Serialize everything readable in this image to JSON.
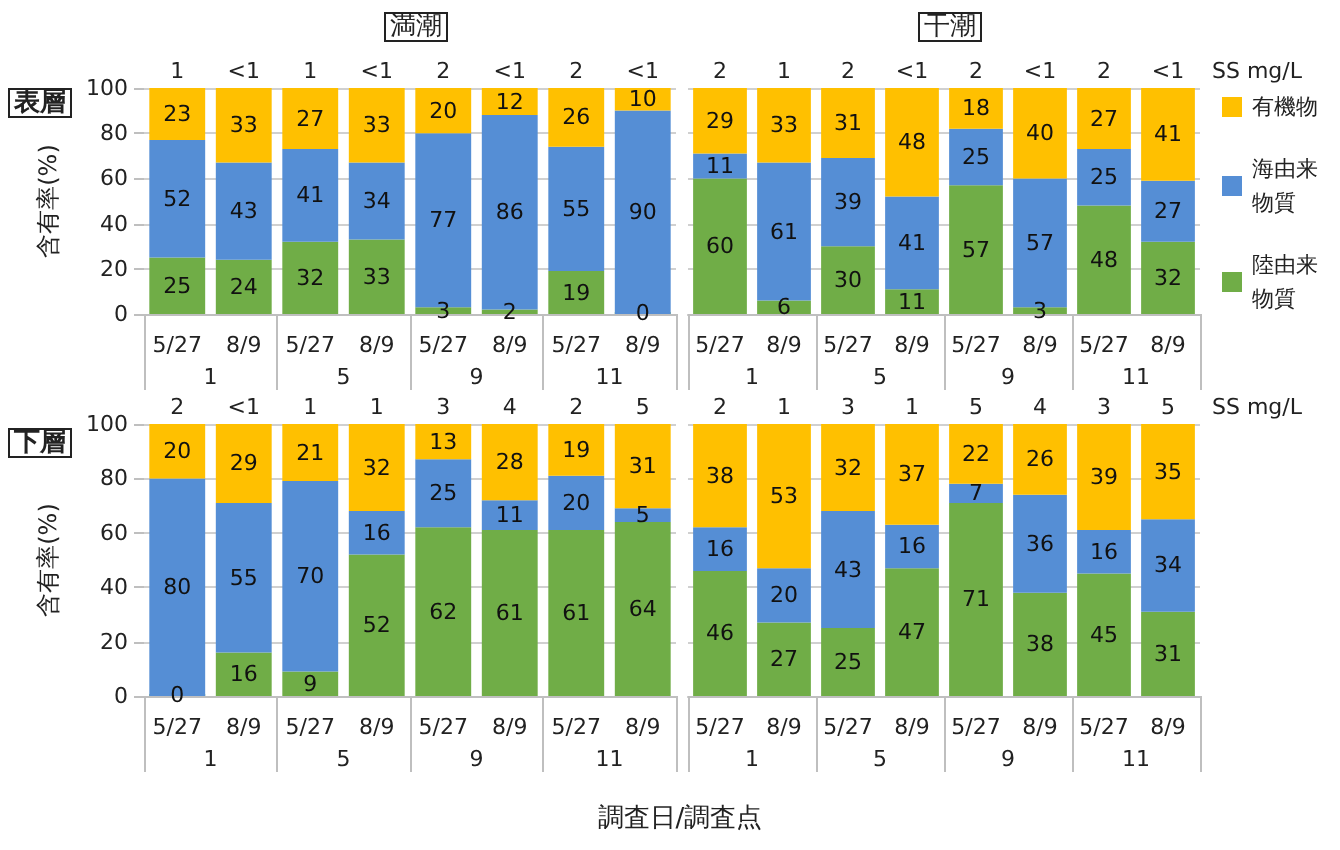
{
  "chart_data": [
    {
      "type": "bar",
      "title": "満潮",
      "subtitle": "表層",
      "ylabel": "含有率(%)",
      "stacked": true,
      "data_labels": true,
      "grid": "y",
      "legend": false,
      "ylim": [
        0,
        100
      ],
      "yticks": [
        0,
        20,
        40,
        60,
        80,
        100
      ],
      "categories": [
        "5/27",
        "8/9",
        "5/27",
        "8/9",
        "5/27",
        "8/9",
        "5/27",
        "8/9"
      ],
      "annotations": [
        "1",
        "<1",
        "1",
        "<1",
        "2",
        "<1",
        "2",
        "<1",
        "1",
        "5",
        "9",
        "11"
      ],
      "series": [
        {
          "color": "#70ad47",
          "values": [
            25,
            24,
            32,
            33,
            3,
            2,
            19,
            0
          ]
        },
        {
          "color": "#558ed5",
          "values": [
            52,
            43,
            41,
            34,
            77,
            86,
            55,
            90
          ]
        },
        {
          "color": "#ffc000",
          "values": [
            23,
            33,
            27,
            33,
            20,
            12,
            26,
            10
          ]
        }
      ]
    },
    {
      "type": "bar",
      "title": "干潮",
      "stacked": true,
      "data_labels": true,
      "grid": "y",
      "legend": "right",
      "tick_labels": "x",
      "ylim": [
        0,
        100
      ],
      "yticks": [
        0,
        20,
        40,
        60,
        80,
        100
      ],
      "categories": [
        "5/27",
        "8/9",
        "5/27",
        "8/9",
        "5/27",
        "8/9",
        "5/27",
        "8/9"
      ],
      "annotations": [
        "2",
        "1",
        "2",
        "<1",
        "2",
        "<1",
        "2",
        "<1",
        "1",
        "5",
        "9",
        "11",
        "SS mg/L"
      ],
      "series": [
        {
          "name": "陸由来物質",
          "color": "#70ad47",
          "values": [
            60,
            6,
            30,
            11,
            57,
            3,
            48,
            32
          ]
        },
        {
          "name": "海由来物質",
          "color": "#558ed5",
          "values": [
            11,
            61,
            39,
            41,
            25,
            57,
            25,
            27
          ]
        },
        {
          "name": "有機物",
          "color": "#ffc000",
          "values": [
            29,
            33,
            31,
            48,
            18,
            40,
            27,
            41
          ]
        }
      ]
    },
    {
      "type": "bar",
      "subtitle": "下層",
      "ylabel": "含有率(%)",
      "xlabel": "調査日/調査点",
      "stacked": true,
      "data_labels": true,
      "grid": "y",
      "legend": false,
      "ylim": [
        0,
        100
      ],
      "yticks": [
        0,
        20,
        40,
        60,
        80,
        100
      ],
      "categories": [
        "5/27",
        "8/9",
        "5/27",
        "8/9",
        "5/27",
        "8/9",
        "5/27",
        "8/9"
      ],
      "annotations": [
        "2",
        "<1",
        "1",
        "1",
        "3",
        "4",
        "2",
        "5",
        "1",
        "5",
        "9",
        "11"
      ],
      "series": [
        {
          "color": "#70ad47",
          "values": [
            0,
            16,
            9,
            52,
            62,
            61,
            61,
            64
          ]
        },
        {
          "color": "#558ed5",
          "values": [
            80,
            55,
            70,
            16,
            25,
            11,
            20,
            5
          ]
        },
        {
          "color": "#ffc000",
          "values": [
            20,
            29,
            21,
            32,
            13,
            28,
            19,
            31
          ]
        }
      ]
    },
    {
      "type": "bar",
      "stacked": true,
      "data_labels": true,
      "grid": "y",
      "legend": false,
      "tick_labels": "x",
      "ylim": [
        0,
        100
      ],
      "yticks": [
        0,
        20,
        40,
        60,
        80,
        100
      ],
      "categories": [
        "5/27",
        "8/9",
        "5/27",
        "8/9",
        "5/27",
        "8/9",
        "5/27",
        "8/9"
      ],
      "annotations": [
        "2",
        "1",
        "3",
        "1",
        "5",
        "4",
        "3",
        "5",
        "1",
        "5",
        "9",
        "11",
        "SS mg/L"
      ],
      "series": [
        {
          "color": "#70ad47",
          "values": [
            46,
            27,
            25,
            47,
            71,
            38,
            45,
            31
          ]
        },
        {
          "color": "#558ed5",
          "values": [
            16,
            20,
            43,
            16,
            7,
            36,
            16,
            34
          ]
        },
        {
          "color": "#ffc000",
          "values": [
            38,
            53,
            32,
            37,
            22,
            26,
            39,
            35
          ]
        }
      ]
    }
  ]
}
